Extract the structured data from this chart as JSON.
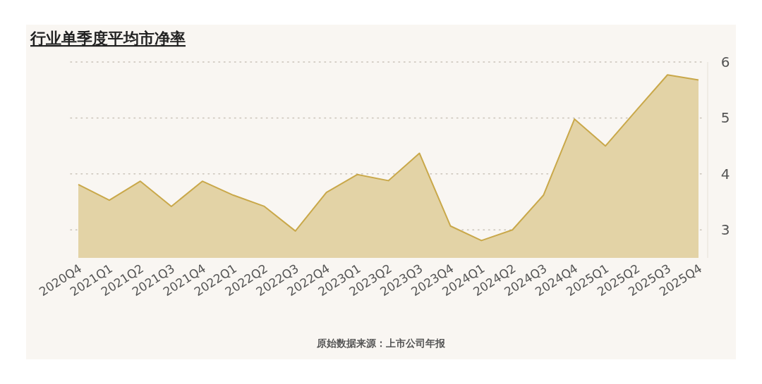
{
  "chart_data": {
    "type": "area",
    "title": "行业单季度平均市净率",
    "annotations": [
      "原始数据来源：上市公司年报"
    ],
    "categories": [
      "2020Q4",
      "2021Q1",
      "2021Q2",
      "2021Q3",
      "2021Q4",
      "2022Q1",
      "2022Q2",
      "2022Q3",
      "2022Q4",
      "2023Q1",
      "2023Q2",
      "2023Q3",
      "2023Q4",
      "2024Q1",
      "2024Q2",
      "2024Q3",
      "2024Q4",
      "2025Q1",
      "2025Q2",
      "2025Q3",
      "2025Q4"
    ],
    "values": [
      3.81,
      3.53,
      3.87,
      3.42,
      3.87,
      3.62,
      3.42,
      2.98,
      3.67,
      3.99,
      3.88,
      4.37,
      3.07,
      2.81,
      3.0,
      3.62,
      4.98,
      4.5,
      5.14,
      5.77,
      5.68
    ],
    "color": "#c9a84a",
    "ylim": [
      2.5,
      6
    ],
    "yticks": [
      3,
      4,
      5,
      6
    ],
    "grid": "y"
  }
}
